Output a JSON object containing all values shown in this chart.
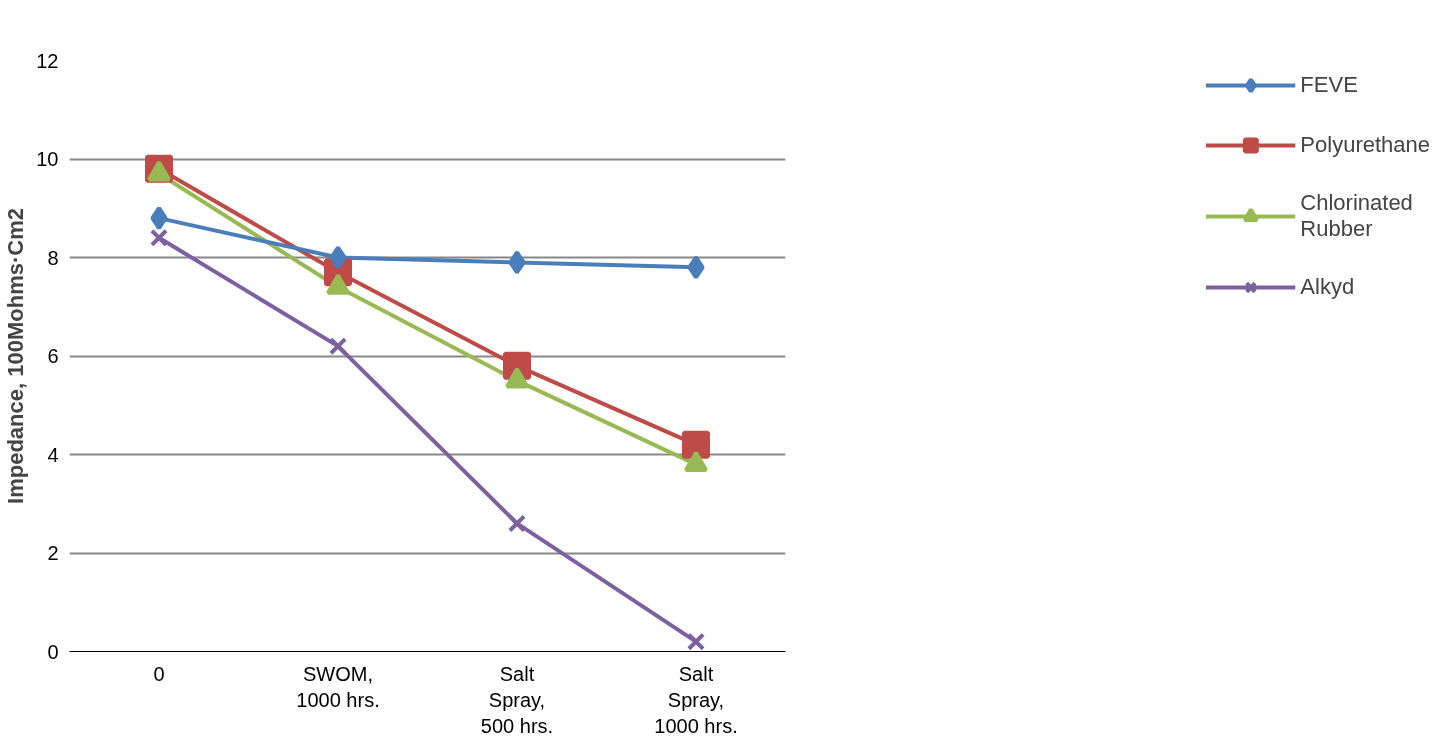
{
  "chart_data": {
    "type": "line",
    "ylabel": "Impedance, 100Mohms·Cm2",
    "categories": [
      "0",
      "SWOM, 1000 hrs.",
      "Salt Spray, 500 hrs.",
      "Salt Spray, 1000 hrs."
    ],
    "ylim": [
      0,
      12
    ],
    "yticks": [
      0,
      2,
      4,
      6,
      8,
      10,
      12
    ],
    "grid": "y",
    "legend": "right",
    "line_style": "solid",
    "series": [
      {
        "name": "FEVE",
        "color": "#4a7ebb",
        "marker": "diamond",
        "values": [
          8.8,
          8.0,
          7.9,
          7.8
        ]
      },
      {
        "name": "Polyurethane",
        "color": "#be4b48",
        "marker": "square",
        "values": [
          9.8,
          7.7,
          5.8,
          4.2
        ]
      },
      {
        "name": "Chlorinated Rubber",
        "color": "#98b954",
        "marker": "triangle",
        "values": [
          9.7,
          7.4,
          5.5,
          3.8
        ]
      },
      {
        "name": "Alkyd",
        "color": "#7d60a0",
        "marker": "cross",
        "values": [
          8.4,
          6.2,
          2.6,
          0.2
        ]
      }
    ]
  }
}
